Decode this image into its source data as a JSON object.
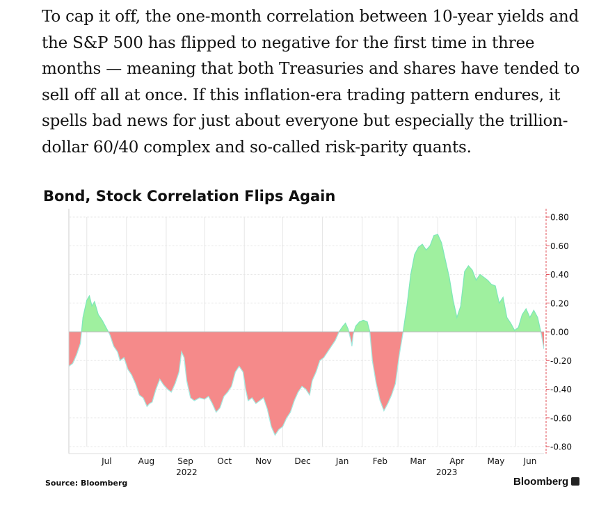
{
  "article": {
    "paragraph": "To cap it off, the one-month correlation between 10-year yields and the S&P 500 has flipped to negative for the first time in three months — meaning that both Treasuries and shares have tended to sell off all at once. If this inflation-era trading pattern endures, it spells bad news for just about everyone but especially the trillion-dollar 60/40 complex and so-called risk-parity quants."
  },
  "footer": {
    "source": "Source: Bloomberg",
    "brand": "Bloomberg"
  },
  "colors": {
    "positive_fill": "#9ff09f",
    "positive_line": "#7fe8b8",
    "negative_fill": "#f58a8a",
    "negative_line": "#a6e8df",
    "grid": "#e6e6e6",
    "axis_tick": "#e0505a"
  },
  "icons": {
    "brand_mark": "bloomberg-square-icon"
  },
  "chart_data": {
    "type": "area",
    "title": "Bond, Stock Correlation Flips Again",
    "xlabel": "",
    "ylabel": "",
    "ylim": [
      -0.8,
      0.8
    ],
    "y_ticks": [
      "0.80",
      "0.60",
      "0.40",
      "0.20",
      "0.00",
      "-0.20",
      "-0.40",
      "-0.60",
      "-0.80"
    ],
    "y_tick_values": [
      0.8,
      0.6,
      0.4,
      0.2,
      0,
      -0.2,
      -0.4,
      -0.6,
      -0.8
    ],
    "y_axis_side": "right",
    "grid": true,
    "x_range": [
      "2022-06-17",
      "2023-06-23"
    ],
    "x_ticks": [
      {
        "label": "Jul",
        "date": "2022-07-01"
      },
      {
        "label": "Aug",
        "date": "2022-08-01"
      },
      {
        "label": "Sep",
        "date": "2022-09-01"
      },
      {
        "label": "Oct",
        "date": "2022-10-01"
      },
      {
        "label": "Nov",
        "date": "2022-11-01"
      },
      {
        "label": "Dec",
        "date": "2022-12-01"
      },
      {
        "label": "Jan",
        "date": "2023-01-01"
      },
      {
        "label": "Feb",
        "date": "2023-02-01"
      },
      {
        "label": "Mar",
        "date": "2023-03-01"
      },
      {
        "label": "Apr",
        "date": "2023-04-01"
      },
      {
        "label": "May",
        "date": "2023-05-01"
      },
      {
        "label": "Jun",
        "date": "2023-06-01"
      }
    ],
    "year_labels": [
      {
        "label": "2022",
        "date": "2022-09-17"
      },
      {
        "label": "2023",
        "date": "2023-04-08"
      }
    ],
    "series": [
      {
        "points": [
          [
            "2022-06-17",
            -0.24
          ],
          [
            "2022-06-20",
            -0.22
          ],
          [
            "2022-06-23",
            -0.16
          ],
          [
            "2022-06-26",
            -0.08
          ],
          [
            "2022-06-28",
            0.1
          ],
          [
            "2022-07-01",
            0.22
          ],
          [
            "2022-07-03",
            0.25
          ],
          [
            "2022-07-05",
            0.18
          ],
          [
            "2022-07-07",
            0.21
          ],
          [
            "2022-07-10",
            0.12
          ],
          [
            "2022-07-13",
            0.08
          ],
          [
            "2022-07-16",
            0.03
          ],
          [
            "2022-07-19",
            -0.02
          ],
          [
            "2022-07-22",
            -0.1
          ],
          [
            "2022-07-25",
            -0.14
          ],
          [
            "2022-07-27",
            -0.2
          ],
          [
            "2022-07-30",
            -0.18
          ],
          [
            "2022-08-02",
            -0.26
          ],
          [
            "2022-08-05",
            -0.3
          ],
          [
            "2022-08-08",
            -0.36
          ],
          [
            "2022-08-11",
            -0.44
          ],
          [
            "2022-08-14",
            -0.46
          ],
          [
            "2022-08-17",
            -0.52
          ],
          [
            "2022-08-19",
            -0.5
          ],
          [
            "2022-08-21",
            -0.49
          ],
          [
            "2022-08-24",
            -0.4
          ],
          [
            "2022-08-27",
            -0.33
          ],
          [
            "2022-08-30",
            -0.37
          ],
          [
            "2022-09-02",
            -0.4
          ],
          [
            "2022-09-05",
            -0.42
          ],
          [
            "2022-09-08",
            -0.36
          ],
          [
            "2022-09-11",
            -0.28
          ],
          [
            "2022-09-13",
            -0.14
          ],
          [
            "2022-09-15",
            -0.18
          ],
          [
            "2022-09-17",
            -0.34
          ],
          [
            "2022-09-20",
            -0.46
          ],
          [
            "2022-09-23",
            -0.48
          ],
          [
            "2022-09-27",
            -0.46
          ],
          [
            "2022-10-01",
            -0.47
          ],
          [
            "2022-10-04",
            -0.45
          ],
          [
            "2022-10-07",
            -0.5
          ],
          [
            "2022-10-10",
            -0.56
          ],
          [
            "2022-10-13",
            -0.53
          ],
          [
            "2022-10-16",
            -0.45
          ],
          [
            "2022-10-19",
            -0.42
          ],
          [
            "2022-10-22",
            -0.38
          ],
          [
            "2022-10-25",
            -0.28
          ],
          [
            "2022-10-28",
            -0.24
          ],
          [
            "2022-10-31",
            -0.28
          ],
          [
            "2022-11-02",
            -0.4
          ],
          [
            "2022-11-04",
            -0.48
          ],
          [
            "2022-11-07",
            -0.46
          ],
          [
            "2022-11-10",
            -0.5
          ],
          [
            "2022-11-13",
            -0.48
          ],
          [
            "2022-11-16",
            -0.46
          ],
          [
            "2022-11-19",
            -0.54
          ],
          [
            "2022-11-22",
            -0.66
          ],
          [
            "2022-11-25",
            -0.72
          ],
          [
            "2022-11-28",
            -0.68
          ],
          [
            "2022-12-01",
            -0.66
          ],
          [
            "2022-12-04",
            -0.6
          ],
          [
            "2022-12-07",
            -0.56
          ],
          [
            "2022-12-10",
            -0.48
          ],
          [
            "2022-12-13",
            -0.42
          ],
          [
            "2022-12-16",
            -0.38
          ],
          [
            "2022-12-19",
            -0.4
          ],
          [
            "2022-12-22",
            -0.44
          ],
          [
            "2022-12-24",
            -0.34
          ],
          [
            "2022-12-27",
            -0.28
          ],
          [
            "2022-12-30",
            -0.2
          ],
          [
            "2023-01-02",
            -0.18
          ],
          [
            "2023-01-05",
            -0.14
          ],
          [
            "2023-01-08",
            -0.1
          ],
          [
            "2023-01-11",
            -0.06
          ],
          [
            "2023-01-14",
            0.0
          ],
          [
            "2023-01-17",
            0.04
          ],
          [
            "2023-01-19",
            0.06
          ],
          [
            "2023-01-21",
            0.02
          ],
          [
            "2023-01-23",
            -0.05
          ],
          [
            "2023-01-24",
            -0.1
          ],
          [
            "2023-01-25",
            -0.02
          ],
          [
            "2023-01-27",
            0.04
          ],
          [
            "2023-01-30",
            0.07
          ],
          [
            "2023-02-02",
            0.08
          ],
          [
            "2023-02-05",
            0.07
          ],
          [
            "2023-02-07",
            0.0
          ],
          [
            "2023-02-09",
            -0.2
          ],
          [
            "2023-02-12",
            -0.36
          ],
          [
            "2023-02-15",
            -0.48
          ],
          [
            "2023-02-18",
            -0.55
          ],
          [
            "2023-02-21",
            -0.5
          ],
          [
            "2023-02-24",
            -0.44
          ],
          [
            "2023-02-27",
            -0.36
          ],
          [
            "2023-03-02",
            -0.16
          ],
          [
            "2023-03-05",
            0.0
          ],
          [
            "2023-03-08",
            0.18
          ],
          [
            "2023-03-11",
            0.4
          ],
          [
            "2023-03-14",
            0.54
          ],
          [
            "2023-03-17",
            0.59
          ],
          [
            "2023-03-20",
            0.61
          ],
          [
            "2023-03-23",
            0.57
          ],
          [
            "2023-03-26",
            0.6
          ],
          [
            "2023-03-29",
            0.67
          ],
          [
            "2023-04-01",
            0.68
          ],
          [
            "2023-04-04",
            0.62
          ],
          [
            "2023-04-07",
            0.5
          ],
          [
            "2023-04-10",
            0.38
          ],
          [
            "2023-04-13",
            0.22
          ],
          [
            "2023-04-16",
            0.1
          ],
          [
            "2023-04-19",
            0.18
          ],
          [
            "2023-04-22",
            0.42
          ],
          [
            "2023-04-25",
            0.46
          ],
          [
            "2023-04-28",
            0.43
          ],
          [
            "2023-05-01",
            0.36
          ],
          [
            "2023-05-04",
            0.4
          ],
          [
            "2023-05-07",
            0.38
          ],
          [
            "2023-05-10",
            0.36
          ],
          [
            "2023-05-13",
            0.33
          ],
          [
            "2023-05-16",
            0.32
          ],
          [
            "2023-05-19",
            0.2
          ],
          [
            "2023-05-22",
            0.24
          ],
          [
            "2023-05-25",
            0.1
          ],
          [
            "2023-05-28",
            0.06
          ],
          [
            "2023-05-31",
            0.01
          ],
          [
            "2023-06-03",
            0.03
          ],
          [
            "2023-06-06",
            0.12
          ],
          [
            "2023-06-09",
            0.16
          ],
          [
            "2023-06-12",
            0.1
          ],
          [
            "2023-06-15",
            0.15
          ],
          [
            "2023-06-18",
            0.1
          ],
          [
            "2023-06-21",
            -0.02
          ],
          [
            "2023-06-23",
            -0.12
          ]
        ]
      }
    ]
  }
}
